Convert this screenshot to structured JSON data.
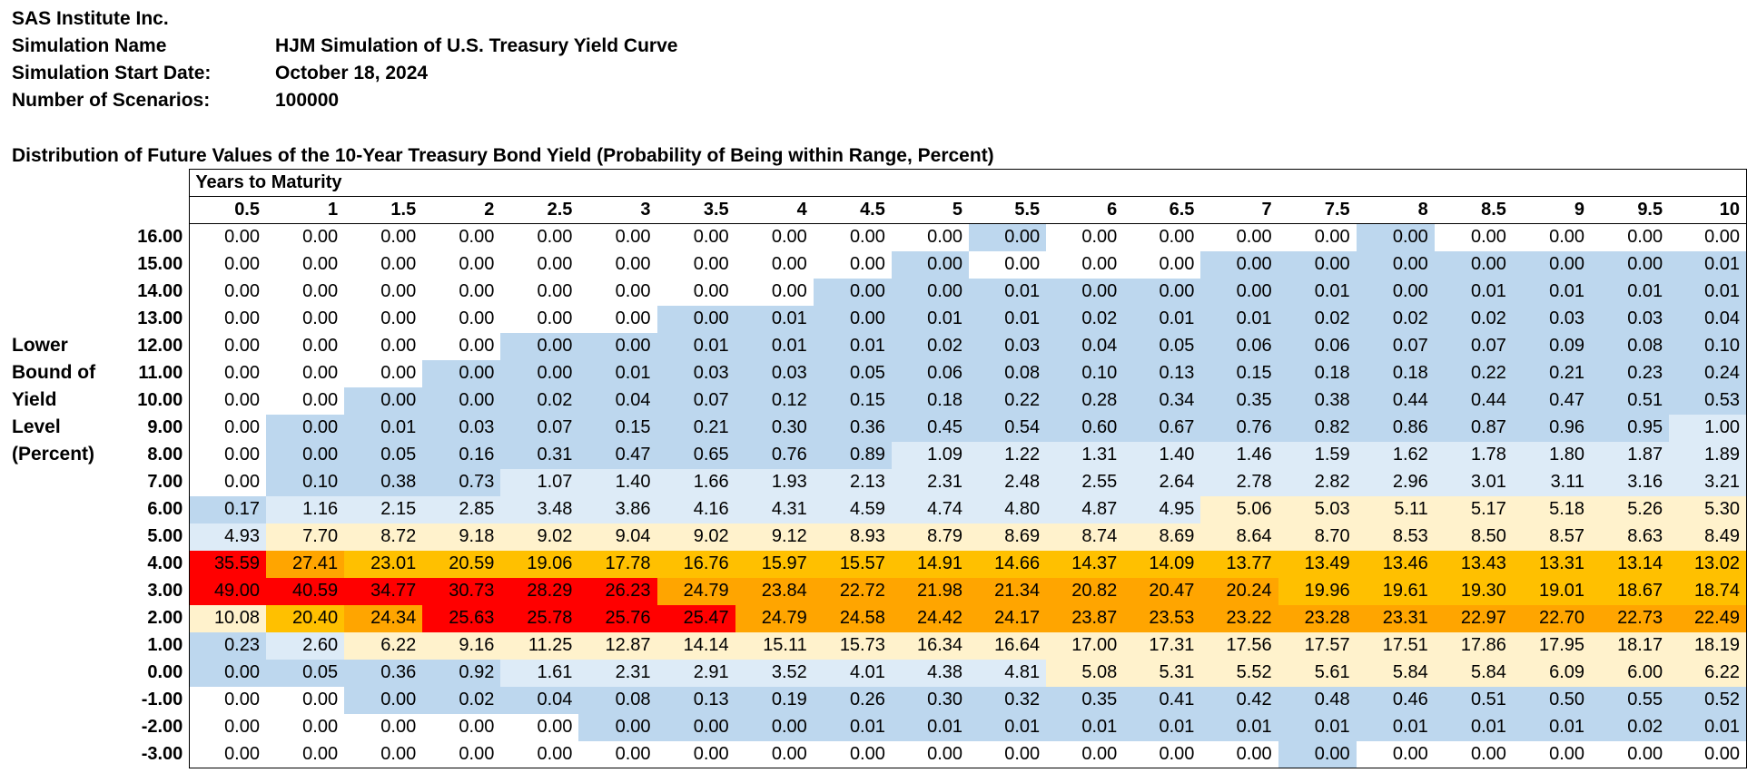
{
  "info": {
    "company": "SAS Institute Inc.",
    "rows": [
      {
        "label": "Simulation Name",
        "value": "HJM Simulation of U.S. Treasury Yield Curve"
      },
      {
        "label": "Simulation Start Date:",
        "value": "October 18, 2024"
      },
      {
        "label": "Number of Scenarios:",
        "value": "100000"
      }
    ]
  },
  "table_title": "Distribution of Future Values of the 10-Year Treasury Bond Yield (Probability of Being within Range, Percent)",
  "side_label": [
    "Lower",
    "Bound of",
    "Yield",
    "Level",
    "(Percent)"
  ],
  "maturity_title": "Years to Maturity",
  "maturities": [
    "0.5",
    "1",
    "1.5",
    "2",
    "2.5",
    "3",
    "3.5",
    "4",
    "4.5",
    "5",
    "5.5",
    "6",
    "6.5",
    "7",
    "7.5",
    "8",
    "8.5",
    "9",
    "9.5",
    "10"
  ],
  "colors": {
    "blue": "#bdd7ee",
    "lightblue": "#ddebf7",
    "cream": "#fff2cc",
    "orange": "#ffc000",
    "deep_orange": "#ffa500",
    "red": "#ff0000"
  },
  "rows": [
    {
      "label": "16.00",
      "values": [
        "0.00",
        "0.00",
        "0.00",
        "0.00",
        "0.00",
        "0.00",
        "0.00",
        "0.00",
        "0.00",
        "0.00",
        "0.00",
        "0.00",
        "0.00",
        "0.00",
        "0.00",
        "0.00",
        "0.00",
        "0.00",
        "0.00",
        "0.00"
      ],
      "colors": [
        "",
        "",
        "",
        "",
        "",
        "",
        "",
        "",
        "",
        "",
        "b",
        "",
        "",
        "",
        "",
        "b",
        "",
        "",
        "",
        ""
      ]
    },
    {
      "label": "15.00",
      "values": [
        "0.00",
        "0.00",
        "0.00",
        "0.00",
        "0.00",
        "0.00",
        "0.00",
        "0.00",
        "0.00",
        "0.00",
        "0.00",
        "0.00",
        "0.00",
        "0.00",
        "0.00",
        "0.00",
        "0.00",
        "0.00",
        "0.00",
        "0.01"
      ],
      "colors": [
        "",
        "",
        "",
        "",
        "",
        "",
        "",
        "",
        "",
        "b",
        "",
        "",
        "",
        "b",
        "b",
        "b",
        "b",
        "b",
        "b",
        "b"
      ]
    },
    {
      "label": "14.00",
      "values": [
        "0.00",
        "0.00",
        "0.00",
        "0.00",
        "0.00",
        "0.00",
        "0.00",
        "0.00",
        "0.00",
        "0.00",
        "0.01",
        "0.00",
        "0.00",
        "0.00",
        "0.01",
        "0.00",
        "0.01",
        "0.01",
        "0.01",
        "0.01"
      ],
      "colors": [
        "",
        "",
        "",
        "",
        "",
        "",
        "",
        "",
        "b",
        "b",
        "b",
        "b",
        "b",
        "b",
        "b",
        "b",
        "b",
        "b",
        "b",
        "b"
      ]
    },
    {
      "label": "13.00",
      "values": [
        "0.00",
        "0.00",
        "0.00",
        "0.00",
        "0.00",
        "0.00",
        "0.00",
        "0.01",
        "0.00",
        "0.01",
        "0.01",
        "0.02",
        "0.01",
        "0.01",
        "0.02",
        "0.02",
        "0.02",
        "0.03",
        "0.03",
        "0.04"
      ],
      "colors": [
        "",
        "",
        "",
        "",
        "",
        "",
        "b",
        "b",
        "b",
        "b",
        "b",
        "b",
        "b",
        "b",
        "b",
        "b",
        "b",
        "b",
        "b",
        "b"
      ]
    },
    {
      "label": "12.00",
      "values": [
        "0.00",
        "0.00",
        "0.00",
        "0.00",
        "0.00",
        "0.00",
        "0.01",
        "0.01",
        "0.01",
        "0.02",
        "0.03",
        "0.04",
        "0.05",
        "0.06",
        "0.06",
        "0.07",
        "0.07",
        "0.09",
        "0.08",
        "0.10"
      ],
      "colors": [
        "",
        "",
        "",
        "",
        "b",
        "b",
        "b",
        "b",
        "b",
        "b",
        "b",
        "b",
        "b",
        "b",
        "b",
        "b",
        "b",
        "b",
        "b",
        "b"
      ]
    },
    {
      "label": "11.00",
      "values": [
        "0.00",
        "0.00",
        "0.00",
        "0.00",
        "0.00",
        "0.01",
        "0.03",
        "0.03",
        "0.05",
        "0.06",
        "0.08",
        "0.10",
        "0.13",
        "0.15",
        "0.18",
        "0.18",
        "0.22",
        "0.21",
        "0.23",
        "0.24"
      ],
      "colors": [
        "",
        "",
        "",
        "b",
        "b",
        "b",
        "b",
        "b",
        "b",
        "b",
        "b",
        "b",
        "b",
        "b",
        "b",
        "b",
        "b",
        "b",
        "b",
        "b"
      ]
    },
    {
      "label": "10.00",
      "values": [
        "0.00",
        "0.00",
        "0.00",
        "0.00",
        "0.02",
        "0.04",
        "0.07",
        "0.12",
        "0.15",
        "0.18",
        "0.22",
        "0.28",
        "0.34",
        "0.35",
        "0.38",
        "0.44",
        "0.44",
        "0.47",
        "0.51",
        "0.53"
      ],
      "colors": [
        "",
        "",
        "b",
        "b",
        "b",
        "b",
        "b",
        "b",
        "b",
        "b",
        "b",
        "b",
        "b",
        "b",
        "b",
        "b",
        "b",
        "b",
        "b",
        "b"
      ]
    },
    {
      "label": "9.00",
      "values": [
        "0.00",
        "0.00",
        "0.01",
        "0.03",
        "0.07",
        "0.15",
        "0.21",
        "0.30",
        "0.36",
        "0.45",
        "0.54",
        "0.60",
        "0.67",
        "0.76",
        "0.82",
        "0.86",
        "0.87",
        "0.96",
        "0.95",
        "1.00"
      ],
      "colors": [
        "",
        "b",
        "b",
        "b",
        "b",
        "b",
        "b",
        "b",
        "b",
        "b",
        "b",
        "b",
        "b",
        "b",
        "b",
        "b",
        "b",
        "b",
        "b",
        "l"
      ]
    },
    {
      "label": "8.00",
      "values": [
        "0.00",
        "0.00",
        "0.05",
        "0.16",
        "0.31",
        "0.47",
        "0.65",
        "0.76",
        "0.89",
        "1.09",
        "1.22",
        "1.31",
        "1.40",
        "1.46",
        "1.59",
        "1.62",
        "1.78",
        "1.80",
        "1.87",
        "1.89"
      ],
      "colors": [
        "",
        "b",
        "b",
        "b",
        "b",
        "b",
        "b",
        "b",
        "b",
        "l",
        "l",
        "l",
        "l",
        "l",
        "l",
        "l",
        "l",
        "l",
        "l",
        "l"
      ]
    },
    {
      "label": "7.00",
      "values": [
        "0.00",
        "0.10",
        "0.38",
        "0.73",
        "1.07",
        "1.40",
        "1.66",
        "1.93",
        "2.13",
        "2.31",
        "2.48",
        "2.55",
        "2.64",
        "2.78",
        "2.82",
        "2.96",
        "3.01",
        "3.11",
        "3.16",
        "3.21"
      ],
      "colors": [
        "",
        "b",
        "b",
        "b",
        "l",
        "l",
        "l",
        "l",
        "l",
        "l",
        "l",
        "l",
        "l",
        "l",
        "l",
        "l",
        "l",
        "l",
        "l",
        "l"
      ]
    },
    {
      "label": "6.00",
      "values": [
        "0.17",
        "1.16",
        "2.15",
        "2.85",
        "3.48",
        "3.86",
        "4.16",
        "4.31",
        "4.59",
        "4.74",
        "4.80",
        "4.87",
        "4.95",
        "5.06",
        "5.03",
        "5.11",
        "5.17",
        "5.18",
        "5.26",
        "5.30"
      ],
      "colors": [
        "b",
        "l",
        "l",
        "l",
        "l",
        "l",
        "l",
        "l",
        "l",
        "l",
        "l",
        "l",
        "l",
        "c",
        "c",
        "c",
        "c",
        "c",
        "c",
        "c"
      ]
    },
    {
      "label": "5.00",
      "values": [
        "4.93",
        "7.70",
        "8.72",
        "9.18",
        "9.02",
        "9.04",
        "9.02",
        "9.12",
        "8.93",
        "8.79",
        "8.69",
        "8.74",
        "8.69",
        "8.64",
        "8.70",
        "8.53",
        "8.50",
        "8.57",
        "8.63",
        "8.49"
      ],
      "colors": [
        "l",
        "c",
        "c",
        "c",
        "c",
        "c",
        "c",
        "c",
        "c",
        "c",
        "c",
        "c",
        "c",
        "c",
        "c",
        "c",
        "c",
        "c",
        "c",
        "c"
      ]
    },
    {
      "label": "4.00",
      "values": [
        "35.59",
        "27.41",
        "23.01",
        "20.59",
        "19.06",
        "17.78",
        "16.76",
        "15.97",
        "15.57",
        "14.91",
        "14.66",
        "14.37",
        "14.09",
        "13.77",
        "13.49",
        "13.46",
        "13.43",
        "13.31",
        "13.14",
        "13.02"
      ],
      "colors": [
        "r",
        "d",
        "o",
        "o",
        "o",
        "o",
        "o",
        "o",
        "o",
        "o",
        "o",
        "o",
        "o",
        "o",
        "o",
        "o",
        "o",
        "o",
        "o",
        "o"
      ]
    },
    {
      "label": "3.00",
      "values": [
        "49.00",
        "40.59",
        "34.77",
        "30.73",
        "28.29",
        "26.23",
        "24.79",
        "23.84",
        "22.72",
        "21.98",
        "21.34",
        "20.82",
        "20.47",
        "20.24",
        "19.96",
        "19.61",
        "19.30",
        "19.01",
        "18.67",
        "18.74"
      ],
      "colors": [
        "r",
        "r",
        "r",
        "r",
        "r",
        "r",
        "d",
        "d",
        "d",
        "d",
        "d",
        "d",
        "d",
        "d",
        "o",
        "o",
        "o",
        "o",
        "o",
        "o"
      ]
    },
    {
      "label": "2.00",
      "values": [
        "10.08",
        "20.40",
        "24.34",
        "25.63",
        "25.78",
        "25.76",
        "25.47",
        "24.79",
        "24.58",
        "24.42",
        "24.17",
        "23.87",
        "23.53",
        "23.22",
        "23.28",
        "23.31",
        "22.97",
        "22.70",
        "22.73",
        "22.49"
      ],
      "colors": [
        "c",
        "o",
        "d",
        "r",
        "r",
        "r",
        "r",
        "d",
        "d",
        "d",
        "d",
        "d",
        "d",
        "d",
        "d",
        "d",
        "d",
        "d",
        "d",
        "d"
      ]
    },
    {
      "label": "1.00",
      "values": [
        "0.23",
        "2.60",
        "6.22",
        "9.16",
        "11.25",
        "12.87",
        "14.14",
        "15.11",
        "15.73",
        "16.34",
        "16.64",
        "17.00",
        "17.31",
        "17.56",
        "17.57",
        "17.51",
        "17.86",
        "17.95",
        "18.17",
        "18.19"
      ],
      "colors": [
        "b",
        "l",
        "c",
        "c",
        "c",
        "c",
        "c",
        "c",
        "c",
        "c",
        "c",
        "c",
        "c",
        "c",
        "c",
        "c",
        "c",
        "c",
        "c",
        "c"
      ]
    },
    {
      "label": "0.00",
      "values": [
        "0.00",
        "0.05",
        "0.36",
        "0.92",
        "1.61",
        "2.31",
        "2.91",
        "3.52",
        "4.01",
        "4.38",
        "4.81",
        "5.08",
        "5.31",
        "5.52",
        "5.61",
        "5.84",
        "5.84",
        "6.09",
        "6.00",
        "6.22"
      ],
      "colors": [
        "b",
        "b",
        "b",
        "b",
        "l",
        "l",
        "l",
        "l",
        "l",
        "l",
        "l",
        "c",
        "c",
        "c",
        "c",
        "c",
        "c",
        "c",
        "c",
        "c"
      ]
    },
    {
      "label": "-1.00",
      "values": [
        "0.00",
        "0.00",
        "0.00",
        "0.02",
        "0.04",
        "0.08",
        "0.13",
        "0.19",
        "0.26",
        "0.30",
        "0.32",
        "0.35",
        "0.41",
        "0.42",
        "0.48",
        "0.46",
        "0.51",
        "0.50",
        "0.55",
        "0.52"
      ],
      "colors": [
        "",
        "",
        "b",
        "b",
        "b",
        "b",
        "b",
        "b",
        "b",
        "b",
        "b",
        "b",
        "b",
        "b",
        "b",
        "b",
        "b",
        "b",
        "b",
        "b"
      ]
    },
    {
      "label": "-2.00",
      "values": [
        "0.00",
        "0.00",
        "0.00",
        "0.00",
        "0.00",
        "0.00",
        "0.00",
        "0.00",
        "0.01",
        "0.01",
        "0.01",
        "0.01",
        "0.01",
        "0.01",
        "0.01",
        "0.01",
        "0.01",
        "0.01",
        "0.02",
        "0.01"
      ],
      "colors": [
        "",
        "",
        "",
        "",
        "",
        "b",
        "b",
        "b",
        "b",
        "b",
        "b",
        "b",
        "b",
        "b",
        "b",
        "b",
        "b",
        "b",
        "b",
        "b"
      ]
    },
    {
      "label": "-3.00",
      "values": [
        "0.00",
        "0.00",
        "0.00",
        "0.00",
        "0.00",
        "0.00",
        "0.00",
        "0.00",
        "0.00",
        "0.00",
        "0.00",
        "0.00",
        "0.00",
        "0.00",
        "0.00",
        "0.00",
        "0.00",
        "0.00",
        "0.00",
        "0.00"
      ],
      "colors": [
        "",
        "",
        "",
        "",
        "",
        "",
        "",
        "",
        "",
        "",
        "",
        "",
        "",
        "",
        "b",
        "",
        "",
        "",
        "",
        ""
      ]
    }
  ]
}
